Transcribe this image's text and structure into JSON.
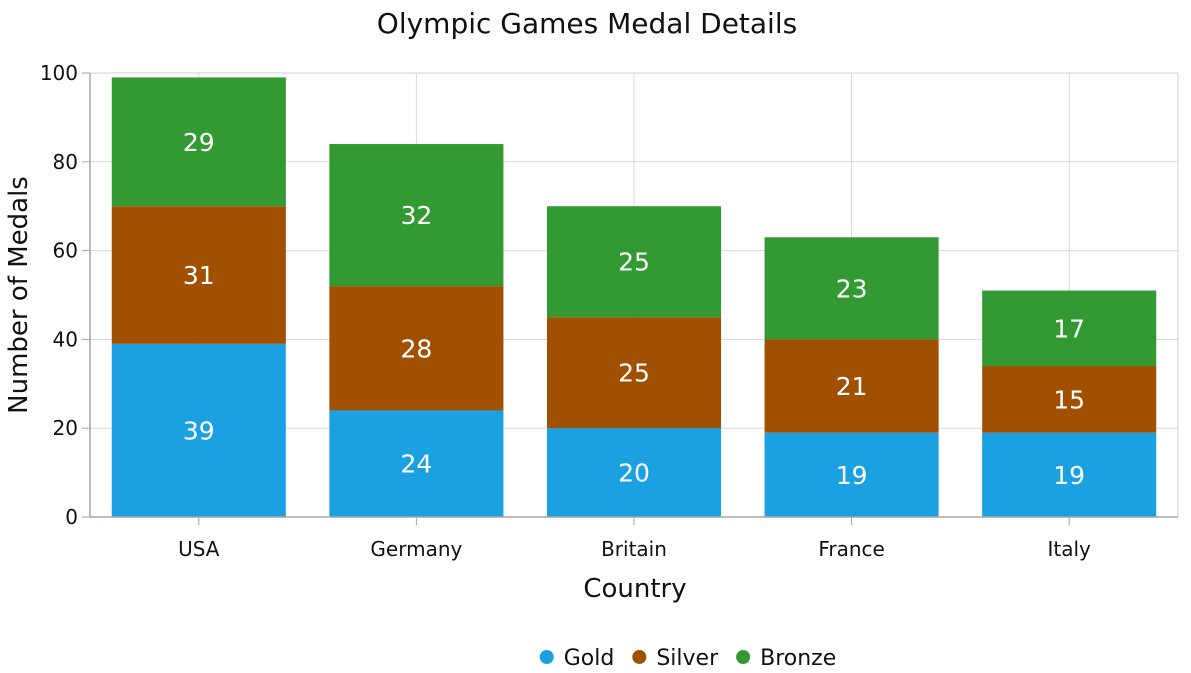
{
  "chart_data": {
    "type": "bar",
    "stacked": true,
    "title": "Olympic Games Medal Details",
    "xlabel": "Country",
    "ylabel": "Number of Medals",
    "categories": [
      "USA",
      "Germany",
      "Britain",
      "France",
      "Italy"
    ],
    "series": [
      {
        "name": "Gold",
        "color": "#1BA1E2",
        "values": [
          39,
          24,
          20,
          19,
          19
        ]
      },
      {
        "name": "Silver",
        "color": "#A05000",
        "values": [
          31,
          28,
          25,
          21,
          15
        ]
      },
      {
        "name": "Bronze",
        "color": "#339933",
        "values": [
          29,
          32,
          25,
          23,
          17
        ]
      }
    ],
    "ylim": [
      0,
      100
    ],
    "yticks": [
      0,
      20,
      40,
      60,
      80,
      100
    ],
    "grid": true,
    "legend_position": "bottom-center",
    "data_labels": true
  }
}
